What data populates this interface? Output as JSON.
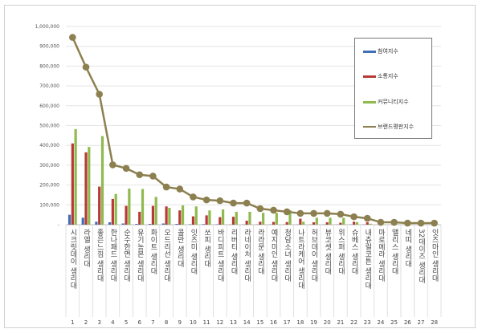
{
  "chart_data": {
    "type": "bar",
    "title": "",
    "xlabel": "",
    "ylabel": "",
    "ylim": [
      0,
      1000000
    ],
    "yticks": [
      "-",
      "100,000",
      "200,000",
      "300,000",
      "400,000",
      "500,000",
      "600,000",
      "700,000",
      "800,000",
      "900,000",
      "1,000,000"
    ],
    "grid": true,
    "legend_position": "top-right",
    "ranks": [
      "1",
      "2",
      "3",
      "4",
      "5",
      "6",
      "7",
      "8",
      "9",
      "10",
      "11",
      "12",
      "13",
      "14",
      "15",
      "16",
      "17",
      "18",
      "19",
      "20",
      "21",
      "22",
      "23",
      "24",
      "25",
      "26",
      "27",
      "28"
    ],
    "categories": [
      "시크릿데이 생리대",
      "라엘 생리대",
      "좋은느낌 생리대",
      "한나패드 생리대",
      "순수한면 생리대",
      "유기농본 생리대",
      "화이트 생리대",
      "오드리선 생리대",
      "콜만 생리대",
      "잇츠미 생리대",
      "쏘피 생리대",
      "바디피트 생리대",
      "리버티 생리대",
      "라네이처 생리대",
      "라라문 생리대",
      "예지미인 생리대",
      "청담소녀 생리대",
      "나트라케어 생리대",
      "허브데이 생리대",
      "뷰코셋 생리대",
      "위스퍼 생리대",
      "슈베스 생리대",
      "내츄럴코튼 생리대",
      "마로메라 생리대",
      "앨리스 생리대",
      "네띠 생리대",
      "32데이즈 생리대",
      "잇즈마인 생리대"
    ],
    "series": [
      {
        "name": "참여지수",
        "type": "bar",
        "color": "#3f6fb5",
        "values": [
          50000,
          35000,
          15000,
          12000,
          6000,
          4000,
          4000,
          6000,
          4000,
          2000,
          3000,
          2000,
          1000,
          1000,
          1000,
          1000,
          1000,
          1000,
          1000,
          1000,
          1000,
          1000,
          1000,
          0,
          0,
          0,
          0,
          0
        ]
      },
      {
        "name": "소통지수",
        "type": "bar",
        "color": "#b83a36",
        "values": [
          410000,
          365000,
          192000,
          130000,
          95000,
          65000,
          95000,
          92000,
          72000,
          42000,
          47000,
          38000,
          40000,
          20000,
          15000,
          14000,
          13000,
          30000,
          12000,
          12000,
          10000,
          15000,
          12000,
          1000,
          1000,
          500,
          500,
          500
        ]
      },
      {
        "name": "커뮤니티지수",
        "type": "bar",
        "color": "#8fba4e",
        "values": [
          482000,
          392000,
          447000,
          155000,
          182000,
          180000,
          140000,
          85000,
          97000,
          92000,
          72000,
          77000,
          65000,
          65000,
          60000,
          60000,
          73000,
          15000,
          35000,
          35000,
          35000,
          13000,
          5000,
          1000,
          1000,
          500,
          500,
          500
        ]
      },
      {
        "name": "브랜드평판지수",
        "type": "line",
        "color": "#8c8050",
        "values": [
          945000,
          795000,
          658000,
          302000,
          284000,
          252000,
          245000,
          190000,
          180000,
          140000,
          125000,
          121000,
          109000,
          109000,
          81000,
          73000,
          65000,
          57000,
          57000,
          57000,
          53000,
          40000,
          32000,
          12000,
          12000,
          8000,
          8000,
          8000
        ]
      }
    ]
  }
}
